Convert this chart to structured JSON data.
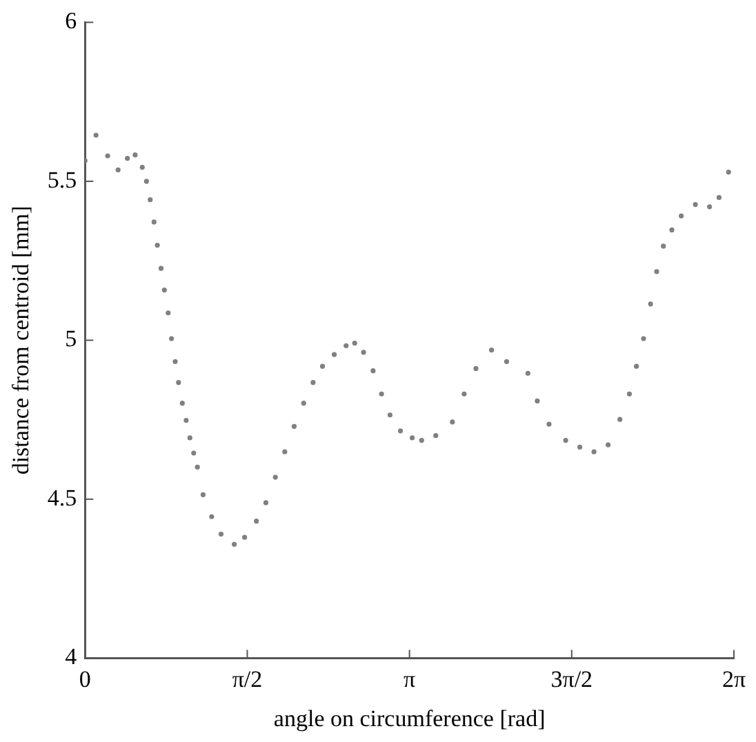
{
  "chart_data": {
    "type": "scatter",
    "xlabel": "angle on circumference [rad]",
    "ylabel": "distance from centroid [mm]",
    "xlim": [
      0,
      6.2832
    ],
    "ylim": [
      4,
      6
    ],
    "xticks": [
      0,
      {
        "value": 1.5708,
        "label": "π/2"
      },
      {
        "value": 3.1416,
        "label": "π"
      },
      {
        "value": 4.7124,
        "label": "3π/2"
      },
      {
        "value": 6.2832,
        "label": "2π"
      }
    ],
    "yticks": [
      4,
      4.5,
      5,
      5.5,
      6
    ],
    "grid": false,
    "legend": false,
    "marker": "circle",
    "series": [
      {
        "color": "#808080",
        "x": [
          0,
          0.106,
          0.219,
          0.32,
          0.41,
          0.485,
          0.554,
          0.595,
          0.631,
          0.668,
          0.7,
          0.736,
          0.768,
          0.805,
          0.837,
          0.873,
          0.905,
          0.942,
          0.979,
          1.015,
          1.052,
          1.088,
          1.143,
          1.226,
          1.317,
          1.445,
          1.545,
          1.659,
          1.751,
          1.843,
          1.934,
          2.025,
          2.117,
          2.208,
          2.299,
          2.413,
          2.528,
          2.611,
          2.697,
          2.789,
          2.871,
          2.953,
          3.054,
          3.168,
          3.259,
          3.396,
          3.557,
          3.671,
          3.785,
          3.936,
          4.082,
          4.288,
          4.379,
          4.493,
          4.654,
          4.791,
          4.928,
          5.065,
          5.179,
          5.271,
          5.339,
          5.408,
          5.476,
          5.535,
          5.6,
          5.682,
          5.773,
          5.91,
          6.047,
          6.139,
          6.231
        ],
        "values": [
          5.565,
          5.645,
          5.58,
          5.536,
          5.572,
          5.583,
          5.544,
          5.5,
          5.442,
          5.372,
          5.299,
          5.226,
          5.158,
          5.086,
          5.005,
          4.933,
          4.867,
          4.802,
          4.748,
          4.693,
          4.645,
          4.601,
          4.514,
          4.445,
          4.39,
          4.358,
          4.38,
          4.431,
          4.489,
          4.569,
          4.649,
          4.729,
          4.802,
          4.867,
          4.918,
          4.955,
          4.983,
          4.991,
          4.962,
          4.904,
          4.831,
          4.765,
          4.715,
          4.693,
          4.685,
          4.7,
          4.743,
          4.831,
          4.911,
          4.969,
          4.933,
          4.896,
          4.809,
          4.736,
          4.685,
          4.664,
          4.649,
          4.671,
          4.751,
          4.831,
          4.918,
          5.005,
          5.114,
          5.216,
          5.296,
          5.347,
          5.391,
          5.427,
          5.42,
          5.449,
          5.529
        ]
      }
    ]
  }
}
